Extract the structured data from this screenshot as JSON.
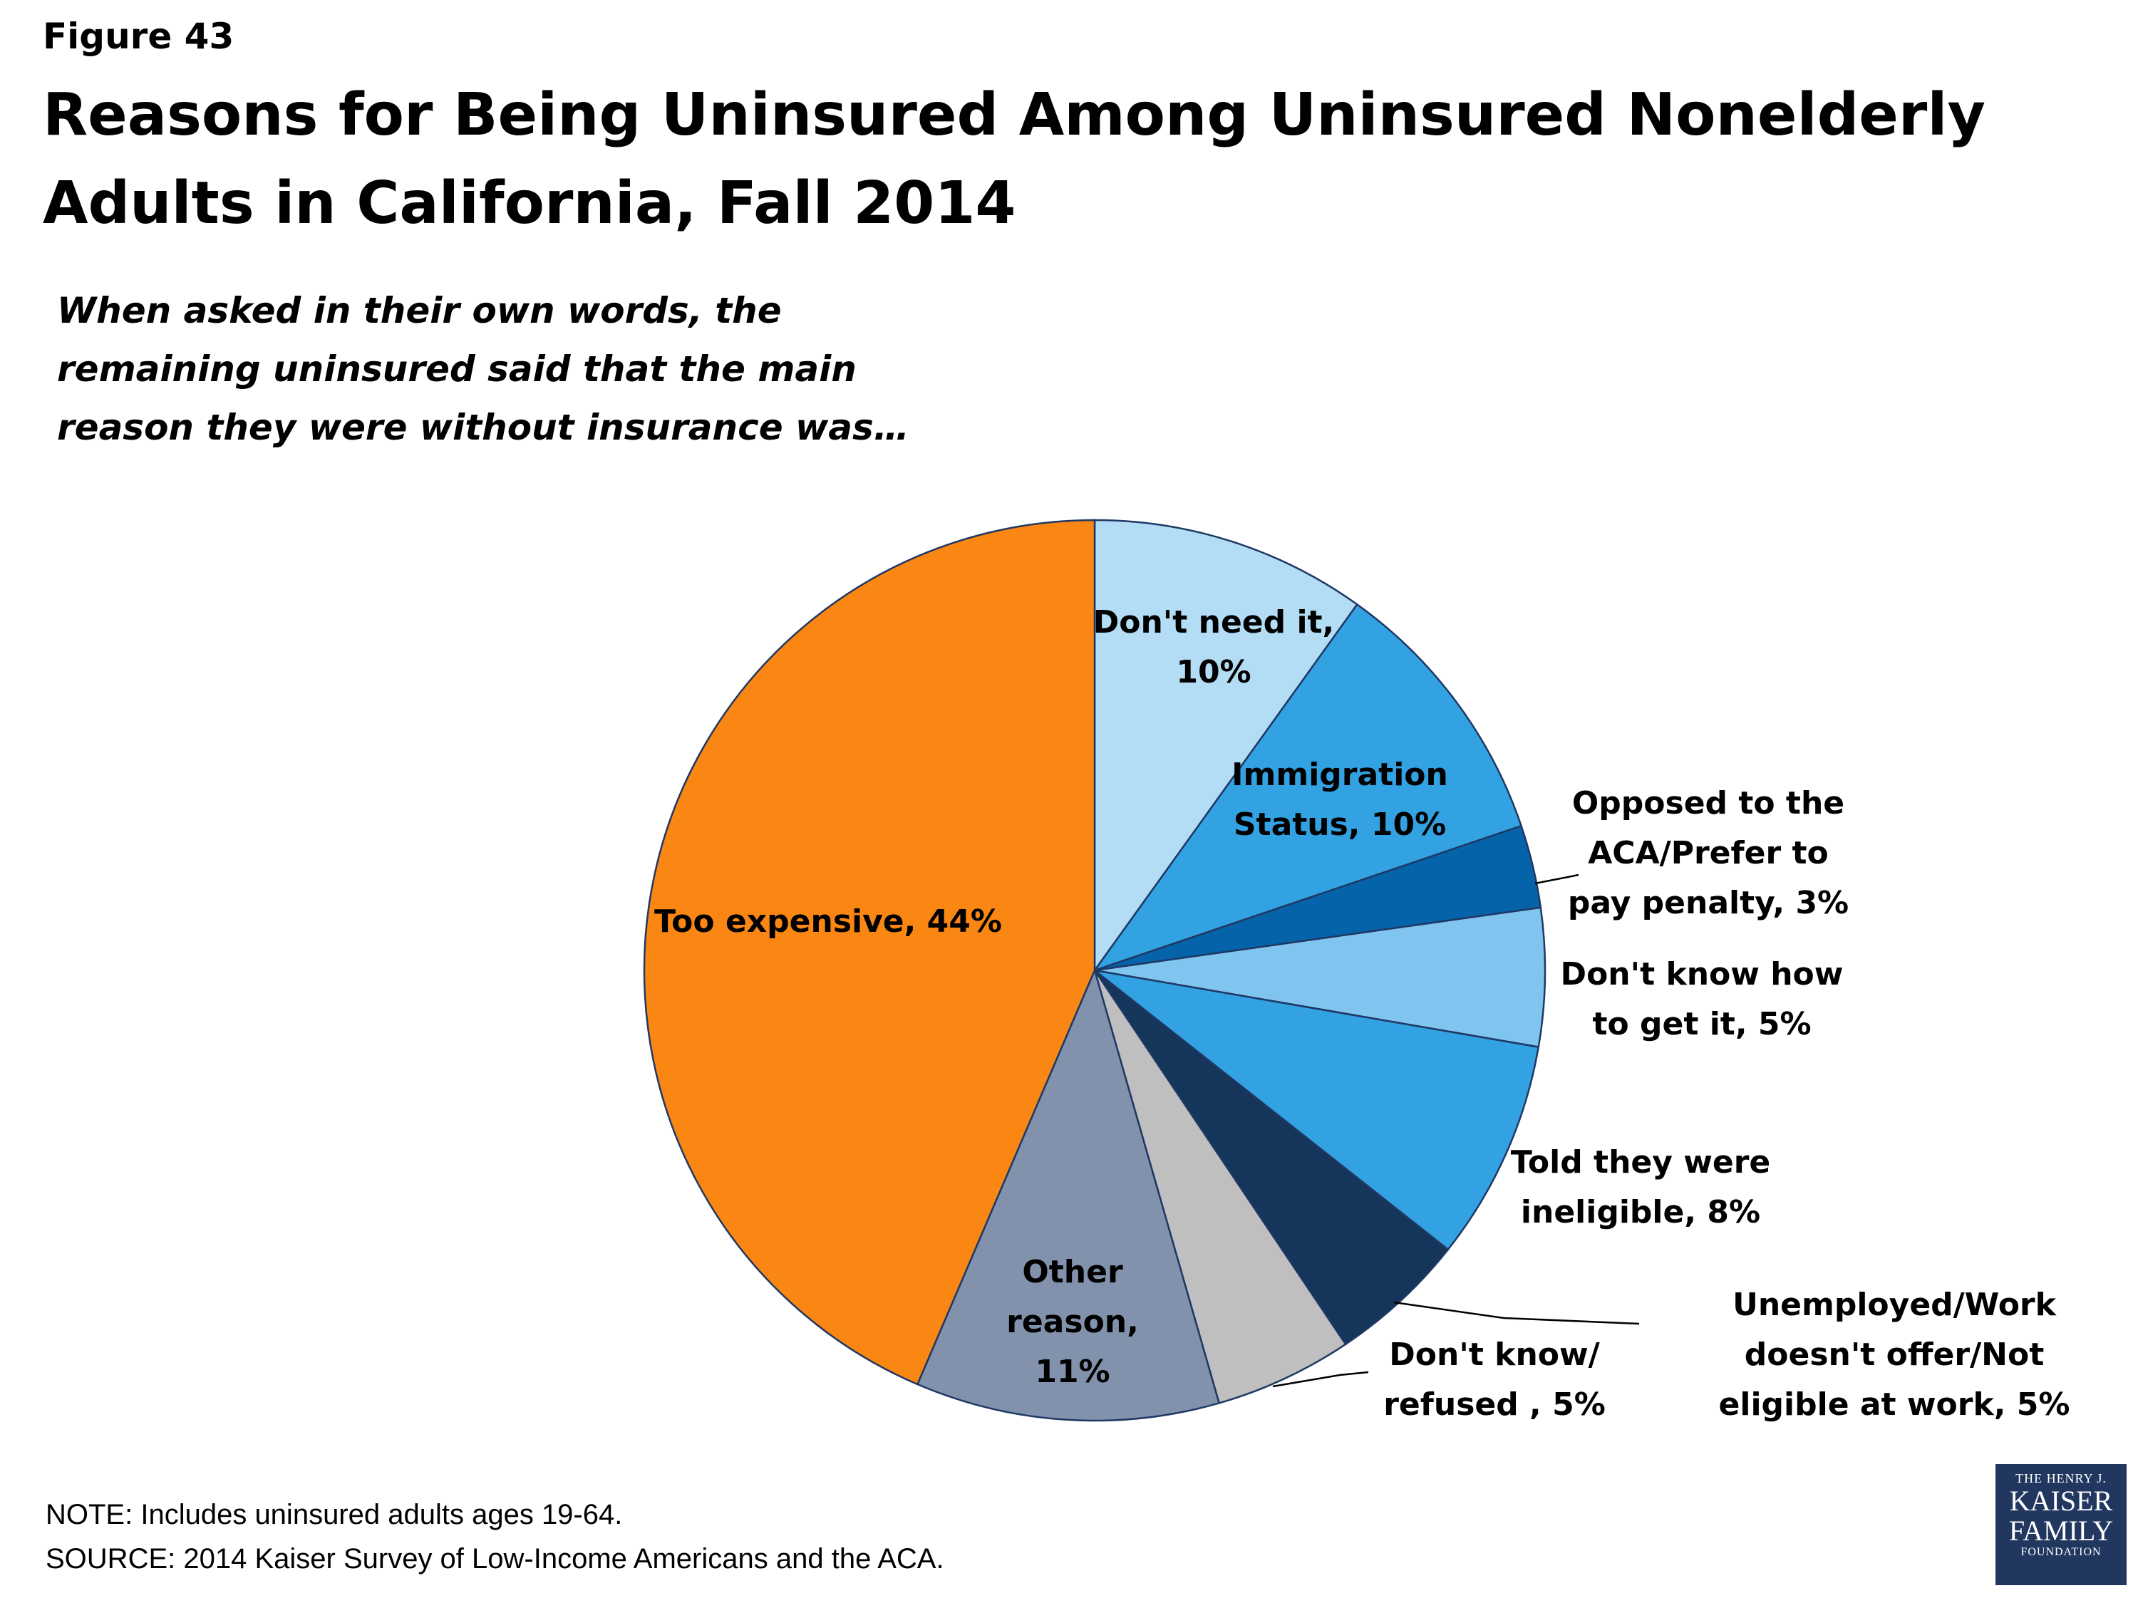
{
  "header": {
    "figure_label": "Figure 43",
    "title": "Reasons for Being Uninsured Among Uninsured Nonelderly Adults in California, Fall 2014",
    "subtitle": "When asked in their own words, the remaining uninsured said that the main reason they were without insurance was…"
  },
  "chart_data": {
    "type": "pie",
    "title": "Reasons for Being Uninsured Among Uninsured Nonelderly Adults in California, Fall 2014",
    "unit": "%",
    "slices": [
      {
        "label": "Don't need it, 10%",
        "lines": [
          "Don't need it,",
          "10%"
        ],
        "value": 10,
        "color": "#b3ddf5"
      },
      {
        "label": "Immigration Status, 10%",
        "lines": [
          "Immigration",
          "Status, 10%"
        ],
        "value": 10,
        "color": "#33a2e2"
      },
      {
        "label": "Opposed to the ACA/Prefer to pay penalty, 3%",
        "lines": [
          "Opposed to the",
          "ACA/Prefer to",
          "pay penalty, 3%"
        ],
        "value": 3,
        "color": "#0563aa"
      },
      {
        "label": "Don't know how to get it, 5%",
        "lines": [
          "Don't know how",
          "to get it, 5%"
        ],
        "value": 5,
        "color": "#7fc5ef"
      },
      {
        "label": "Told they were ineligible, 8%",
        "lines": [
          "Told they were",
          "ineligible, 8%"
        ],
        "value": 8,
        "color": "#33a2e2"
      },
      {
        "label": "Unemployed/Work doesn't offer/Not eligible at work, 5%",
        "lines": [
          "Unemployed/Work",
          "doesn't offer/Not",
          "eligible at work, 5%"
        ],
        "value": 5,
        "color": "#15355a"
      },
      {
        "label": "Don't know/refused , 5%",
        "lines": [
          "Don't know/",
          "refused , 5%"
        ],
        "value": 5,
        "color": "#bfbfbf"
      },
      {
        "label": "Other reason, 11%",
        "lines": [
          "Other",
          "reason,",
          "11%"
        ],
        "value": 11,
        "color": "#8292ad"
      },
      {
        "label": "Too expensive, 44%",
        "lines": [
          "Too expensive, 44%"
        ],
        "value": 44,
        "color": "#fa8613"
      }
    ]
  },
  "footer": {
    "note": "NOTE: Includes uninsured adults ages 19-64.",
    "source": "SOURCE: 2014 Kaiser Survey of Low-Income Americans and the ACA."
  },
  "logo": {
    "line1": "THE HENRY J.",
    "line2": "KAISER",
    "line3": "FAMILY",
    "line4": "FOUNDATION"
  }
}
